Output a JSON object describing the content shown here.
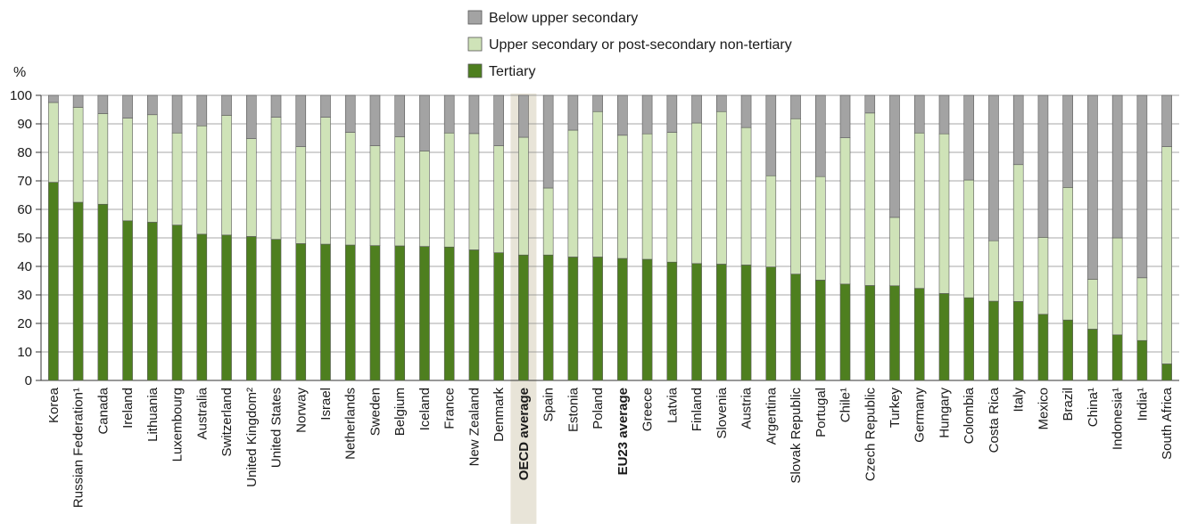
{
  "chart_data": {
    "type": "bar",
    "stacked": true,
    "ylabel": "%",
    "ylim": [
      0,
      100
    ],
    "yticks": [
      0,
      10,
      20,
      30,
      40,
      50,
      60,
      70,
      80,
      90,
      100
    ],
    "grid": true,
    "legend_position": "top-center",
    "categories": [
      "Korea",
      "Russian Federation¹",
      "Canada",
      "Ireland",
      "Lithuania",
      "Luxembourg",
      "Australia",
      "Switzerland",
      "United Kingdom²",
      "United States",
      "Norway",
      "Israel",
      "Netherlands",
      "Sweden",
      "Belgium",
      "Iceland",
      "France",
      "New Zealand",
      "Denmark",
      "OECD average",
      "Spain",
      "Estonia",
      "Poland",
      "EU23 average",
      "Greece",
      "Latvia",
      "Finland",
      "Slovenia",
      "Austria",
      "Argentina",
      "Slovak Republic",
      "Portugal",
      "Chile¹",
      "Czech Republic",
      "Turkey",
      "Germany",
      "Hungary",
      "Colombia",
      "Costa Rica",
      "Italy",
      "Mexico",
      "Brazil",
      "China¹",
      "Indonesia¹",
      "India¹",
      "South Africa"
    ],
    "highlighted_categories": [
      "OECD average"
    ],
    "bold_categories": [
      "OECD average",
      "EU23 average"
    ],
    "series": [
      {
        "name": "Tertiary",
        "color": "#4e7f1f",
        "values": [
          69.5,
          62.5,
          61.8,
          56,
          55.5,
          54.5,
          51.3,
          51,
          50.5,
          49.5,
          48,
          47.8,
          47.5,
          47.3,
          47.2,
          47,
          46.8,
          45.8,
          44.8,
          44,
          44,
          43.3,
          43.3,
          42.8,
          42.5,
          41.5,
          41,
          40.8,
          40.5,
          39.8,
          37.3,
          35.2,
          33.8,
          33.3,
          33.2,
          32.3,
          30.5,
          29,
          27.8,
          27.7,
          23.2,
          21.2,
          18,
          16,
          14,
          5.8
        ]
      },
      {
        "name": "Upper secondary or post-secondary non-tertiary",
        "color": "#cfe3b8",
        "values": [
          28,
          33.3,
          31.8,
          36,
          37.7,
          32.3,
          38,
          42,
          34.3,
          42.8,
          34,
          44.5,
          39.5,
          35,
          38.3,
          33.5,
          40,
          40.8,
          37.5,
          41.3,
          23.5,
          44.5,
          51,
          43.2,
          44,
          45.5,
          49.3,
          53.5,
          48.2,
          32,
          54.5,
          36.3,
          51.3,
          60.5,
          24,
          54.5,
          56,
          41.3,
          21.2,
          48,
          27,
          46.5,
          17.5,
          34,
          22,
          76.2
        ]
      },
      {
        "name": "Below upper secondary",
        "color": "#a3a3a3",
        "values": [
          2.5,
          4.2,
          6.4,
          8,
          6.8,
          13.2,
          10.7,
          7,
          15.2,
          7.7,
          18,
          7.7,
          13,
          17.7,
          14.5,
          19.5,
          13.2,
          13.4,
          17.7,
          14.7,
          32.5,
          12.2,
          5.7,
          14,
          13.5,
          13,
          9.7,
          5.7,
          11.3,
          28.2,
          8.2,
          28.5,
          14.9,
          6.2,
          42.8,
          13.2,
          13.5,
          29.7,
          51,
          24.3,
          49.8,
          32.3,
          64.5,
          50,
          64,
          18
        ]
      }
    ]
  }
}
